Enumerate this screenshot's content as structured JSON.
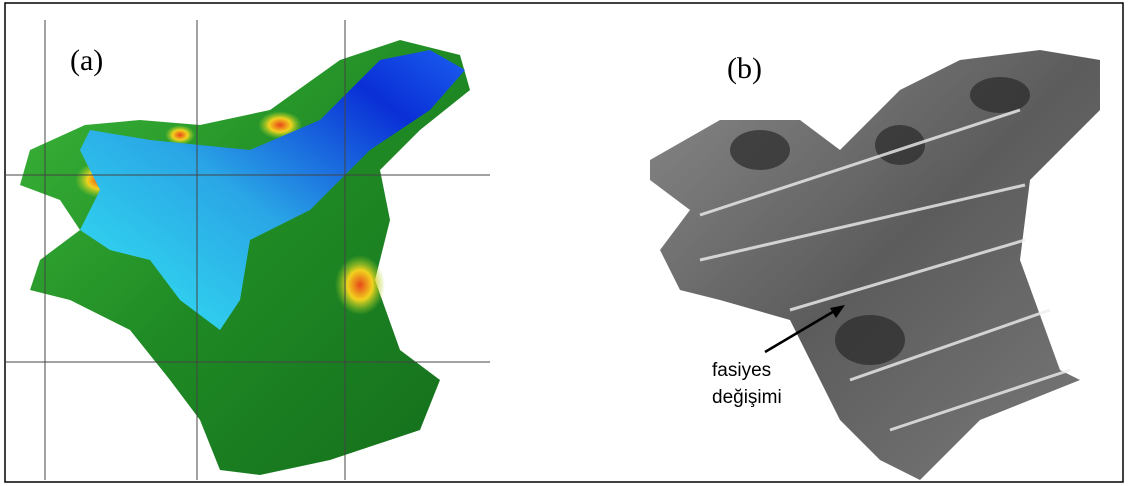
{
  "panels": [
    {
      "label": "(a)"
    },
    {
      "label": "(b)"
    }
  ],
  "annotation": {
    "lines": [
      "fasiyes",
      "değişimi"
    ]
  }
}
